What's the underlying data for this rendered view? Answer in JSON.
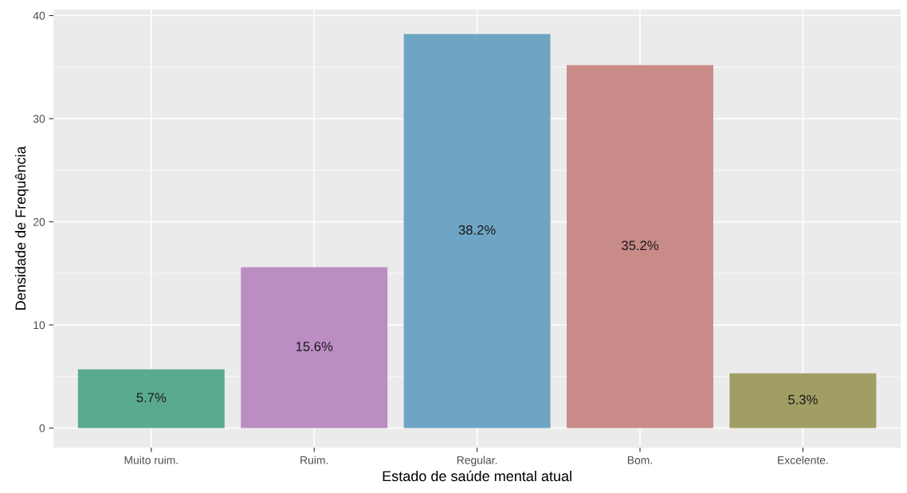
{
  "chart_data": {
    "type": "bar",
    "xlabel": "Estado de saúde mental atual",
    "ylabel": "Densidade de Frequência",
    "categories": [
      "Muito ruim.",
      "Ruim.",
      "Regular.",
      "Bom.",
      "Excelente."
    ],
    "values": [
      5.7,
      15.6,
      38.2,
      35.2,
      5.3
    ],
    "colors": [
      "#5aab8e",
      "#bb8dc3",
      "#6fa5c4",
      "#c98b88",
      "#a09e64"
    ],
    "value_labels": [
      "5.7%",
      "15.6%",
      "38.2%",
      "35.2%",
      "5.3%"
    ],
    "ylim": [
      -1.9,
      40.6
    ],
    "yticks": [
      0,
      10,
      20,
      30,
      40
    ],
    "grid": true
  }
}
